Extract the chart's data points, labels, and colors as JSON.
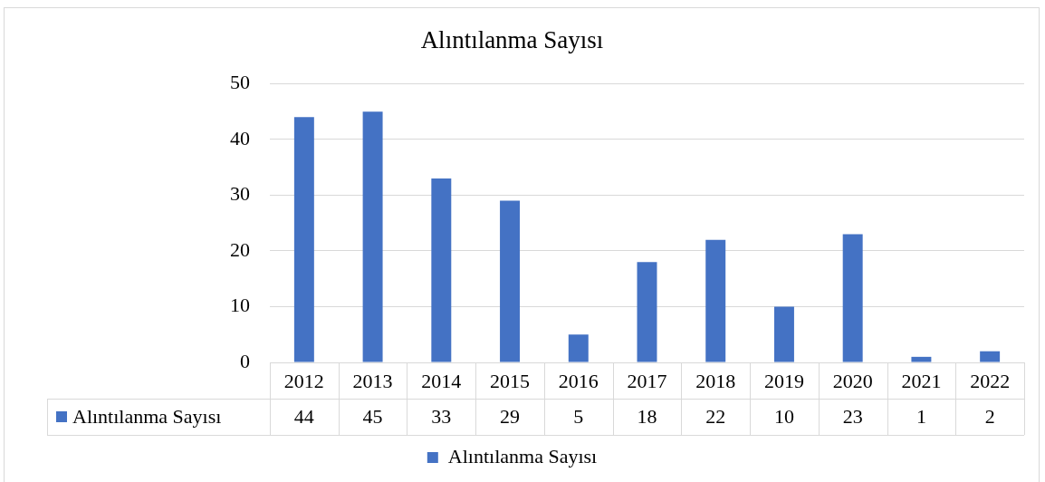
{
  "chart_data": {
    "type": "bar",
    "title": "Alıntılanma Sayısı",
    "categories": [
      "2012",
      "2013",
      "2014",
      "2015",
      "2016",
      "2017",
      "2018",
      "2019",
      "2020",
      "2021",
      "2022"
    ],
    "series": [
      {
        "name": "Alıntılanma Sayısı",
        "color": "#4472c4",
        "values": [
          44,
          45,
          33,
          29,
          5,
          18,
          22,
          10,
          23,
          1,
          2
        ]
      }
    ],
    "ylim": [
      0,
      50
    ],
    "yticks": [
      0,
      10,
      20,
      30,
      40,
      50
    ],
    "grid": "y",
    "legend": "bottom",
    "data_labels": true
  }
}
